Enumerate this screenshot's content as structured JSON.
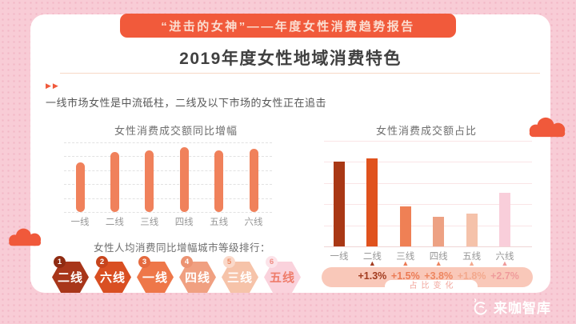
{
  "banner": {
    "title": "“进击的女神”——年度女性消费趋势报告"
  },
  "header": {
    "title": "2019年度女性地域消费特色"
  },
  "intro": {
    "arrows": "▶▶",
    "text": "一线市场女性是中流砥柱，二线及以下市场的女性正在追击"
  },
  "colors": {
    "accent": "#F0593B",
    "banner_bg": "#F15A3B",
    "banner_text": "#FBDDD0",
    "outer_pink": "#F8CCD6",
    "left_bar": "#F0815B",
    "pill_bg": "#F9C8B9",
    "pill_label_text": "#F2A79E",
    "brand_text": "#FFFFFF"
  },
  "chart_data": [
    {
      "type": "bar",
      "title": "女性消费成交额同比增幅",
      "categories": [
        "一线",
        "二线",
        "三线",
        "四线",
        "五线",
        "六线"
      ],
      "values_relative": [
        62,
        75,
        77,
        81,
        77,
        79
      ],
      "ylabel": "",
      "xlabel": "",
      "grid": "dashed horizontal, no numeric axis labels",
      "bar_color": "#F0815B"
    },
    {
      "type": "bar",
      "title": "女性消费成交额占比",
      "categories": [
        "一线",
        "二线",
        "三线",
        "四线",
        "五线",
        "六线"
      ],
      "values_relative": [
        106,
        110,
        50,
        37,
        41,
        67
      ],
      "ylabel": "",
      "xlabel": "",
      "grid": "solid light-pink horizontal, no numeric axis labels",
      "bar_colors": [
        "#A93815",
        "#E0521D",
        "#EF8055",
        "#EDA183",
        "#F5C2AA",
        "#F9CEDA"
      ],
      "annotations": {
        "label": "占比变化",
        "items": [
          {
            "city": "二线",
            "value": "+1.3%",
            "color": "#A23B1F"
          },
          {
            "city": "三线",
            "value": "+1.5%",
            "color": "#EC7B55"
          },
          {
            "city": "四线",
            "value": "+3.8%",
            "color": "#EE8660"
          },
          {
            "city": "五线",
            "value": "+1.8%",
            "color": "#F3A98E"
          },
          {
            "city": "六线",
            "value": "+2.7%",
            "color": "#EF9B9B"
          }
        ]
      }
    }
  ],
  "ranking": {
    "title": "女性人均消费同比增幅城市等级排行：",
    "items": [
      {
        "rank": "1",
        "label": "二线",
        "fill": "#A8361A",
        "badge_fill": "#8F2B12",
        "badge_text": "#FFFFFF",
        "text": "#FFFFFF"
      },
      {
        "rank": "2",
        "label": "六线",
        "fill": "#D94F22",
        "badge_fill": "#C7441C",
        "badge_text": "#FFFFFF",
        "text": "#FFFFFF"
      },
      {
        "rank": "3",
        "label": "一线",
        "fill": "#EE7749",
        "badge_fill": "#E56A3E",
        "badge_text": "#FFFFFF",
        "text": "#FFFFFF"
      },
      {
        "rank": "4",
        "label": "四线",
        "fill": "#F0A081",
        "badge_fill": "#EC9372",
        "badge_text": "#FFFFFF",
        "text": "#FFFFFF"
      },
      {
        "rank": "5",
        "label": "三线",
        "fill": "#F6C3A9",
        "badge_fill": "#FAD9CA",
        "badge_text": "#EE8A62",
        "text": "#FFFFFF"
      },
      {
        "rank": "6",
        "label": "五线",
        "fill": "#FAD2DC",
        "badge_fill": "#FCE3E9",
        "badge_text": "#EF8D85",
        "text": "#EE7C6B"
      }
    ]
  },
  "footer": {
    "brand": "来咖智库"
  }
}
